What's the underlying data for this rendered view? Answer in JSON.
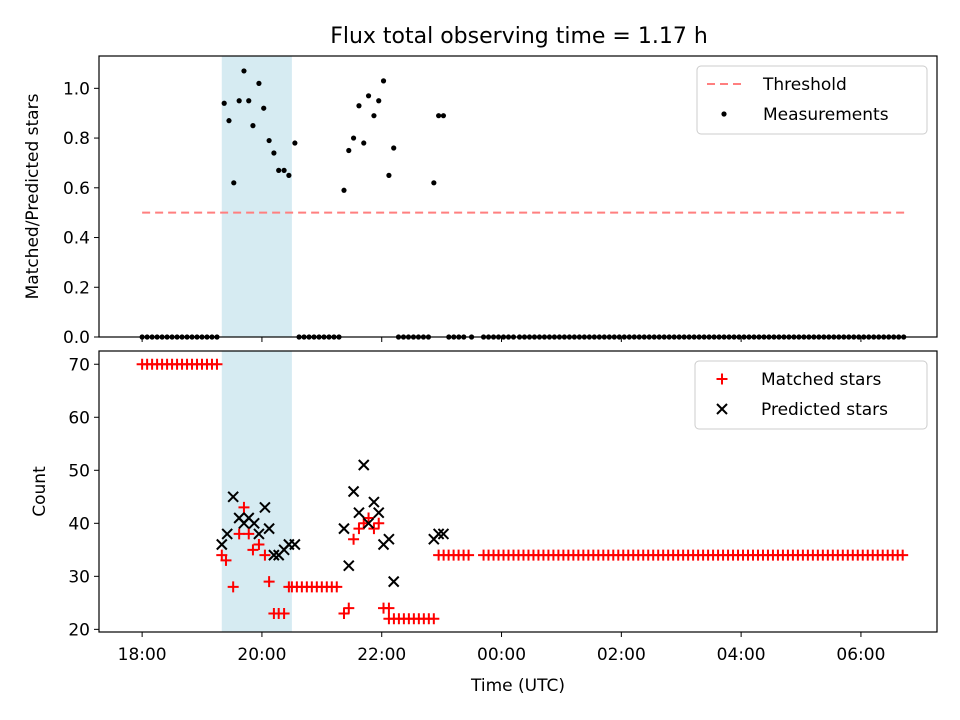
{
  "figure_title": "Flux total observing time = 1.17 h",
  "colors": {
    "threshold": "#ff7f7f",
    "measurement": "#000000",
    "matched": "#ff0000",
    "predicted": "#000000",
    "span": "#add8e6"
  },
  "chart_data": [
    {
      "type": "scatter",
      "ylabel": "Matched/Predicted stars",
      "ylim": [
        0,
        1.13
      ],
      "yticks": [
        0.0,
        0.2,
        0.4,
        0.6,
        0.8,
        1.0
      ],
      "ytick_labels": [
        "0.0",
        "0.2",
        "0.4",
        "0.6",
        "0.8",
        "1.0"
      ],
      "x_unit": "hours since 18:00 UTC",
      "xlim": [
        -0.72,
        13.27
      ],
      "legend_position": "upper right",
      "shaded_span": [
        1.33,
        2.5
      ],
      "series": [
        {
          "name": "Threshold",
          "kind": "dashed-line",
          "x": [
            0.0,
            12.75
          ],
          "y": [
            0.5,
            0.5
          ]
        },
        {
          "name": "Measurements",
          "kind": "dot",
          "x": [
            1.37,
            1.45,
            1.53,
            1.62,
            1.7,
            1.78,
            1.85,
            1.95,
            2.03,
            2.12,
            2.2,
            2.28,
            2.37,
            2.45,
            2.55,
            3.37,
            3.45,
            3.53,
            3.62,
            3.7,
            3.78,
            3.87,
            3.95,
            4.03,
            4.12,
            4.2,
            4.87,
            4.95,
            5.03
          ],
          "y": [
            0.94,
            0.87,
            0.62,
            0.95,
            1.07,
            0.95,
            0.85,
            1.02,
            0.92,
            0.79,
            0.74,
            0.67,
            0.67,
            0.65,
            0.78,
            0.59,
            0.75,
            0.8,
            0.93,
            0.78,
            0.97,
            0.89,
            0.95,
            1.03,
            0.65,
            0.76,
            0.62,
            0.89,
            0.89
          ]
        }
      ],
      "zero_runs": [
        {
          "from": 0.0,
          "to": 1.33,
          "step": 0.0833
        },
        {
          "from": 2.62,
          "to": 3.33,
          "step": 0.0833
        },
        {
          "from": 4.28,
          "to": 4.78,
          "step": 0.0833
        },
        {
          "from": 5.12,
          "to": 5.45,
          "step": 0.0833
        },
        {
          "from": 5.5,
          "to": 5.5,
          "step": 0.0833
        },
        {
          "from": 5.7,
          "to": 6.2,
          "step": 0.0833
        },
        {
          "from": 6.3,
          "to": 12.75,
          "step": 0.0833
        }
      ]
    },
    {
      "type": "scatter",
      "ylabel": "Count",
      "xlabel": "Time (UTC)",
      "ylim": [
        19.5,
        72.5
      ],
      "yticks": [
        20,
        30,
        40,
        50,
        60,
        70
      ],
      "ytick_labels": [
        "20",
        "30",
        "40",
        "50",
        "60",
        "70"
      ],
      "x_unit": "hours since 18:00 UTC",
      "xlim": [
        -0.72,
        13.27
      ],
      "xticks": [
        0,
        2,
        4,
        6,
        8,
        10,
        12
      ],
      "xtick_labels": [
        "18:00",
        "20:00",
        "22:00",
        "00:00",
        "02:00",
        "04:00",
        "06:00"
      ],
      "legend_position": "upper right",
      "shaded_span": [
        1.33,
        2.5
      ],
      "series": [
        {
          "name": "Matched stars",
          "marker": "plus",
          "x": [
            1.33,
            1.4,
            1.52,
            1.62,
            1.7,
            1.78,
            1.85,
            1.95,
            2.05,
            2.12,
            2.2,
            2.28,
            2.37,
            2.45,
            3.37,
            3.45,
            3.53,
            3.62,
            3.7,
            3.78,
            3.87,
            3.95,
            4.03,
            4.12
          ],
          "y": [
            34,
            33,
            28,
            38,
            43,
            38,
            35,
            36,
            34,
            29,
            23,
            23,
            23,
            28,
            23,
            24,
            37,
            39,
            40,
            41,
            39,
            40,
            24,
            24
          ],
          "runs": [
            {
              "from": 0.0,
              "to": 1.33,
              "step": 0.0833,
              "y": 70
            },
            {
              "from": 2.5,
              "to": 3.33,
              "step": 0.0833,
              "y": 28
            },
            {
              "from": 4.12,
              "to": 4.87,
              "step": 0.0833,
              "y": 22
            },
            {
              "from": 4.95,
              "to": 5.45,
              "step": 0.0833,
              "y": 34
            },
            {
              "from": 5.7,
              "to": 12.75,
              "step": 0.0833,
              "y": 34
            }
          ]
        },
        {
          "name": "Predicted stars",
          "marker": "x",
          "x": [
            1.33,
            1.42,
            1.52,
            1.62,
            1.7,
            1.78,
            1.87,
            1.95,
            2.05,
            2.12,
            2.2,
            2.28,
            2.37,
            2.45,
            2.55,
            3.37,
            3.45,
            3.53,
            3.62,
            3.7,
            3.78,
            3.87,
            3.95,
            4.03,
            4.12,
            4.2,
            4.87,
            4.95,
            5.03
          ],
          "y": [
            36,
            38,
            45,
            41,
            40,
            41,
            40,
            38,
            43,
            39,
            34,
            34,
            35,
            36,
            36,
            39,
            32,
            46,
            42,
            51,
            40,
            44,
            42,
            36,
            37,
            29,
            37,
            38,
            38
          ]
        }
      ]
    }
  ]
}
